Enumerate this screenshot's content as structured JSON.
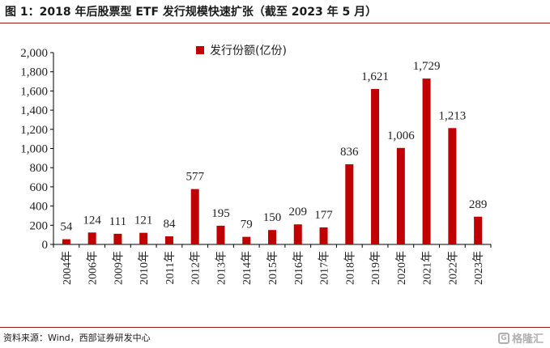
{
  "title": "图 1：2018 年后股票型 ETF 发行规模快速扩张（截至 2023 年 5 月）",
  "source": "资料来源：Wind，西部证券研发中心",
  "watermark": "格隆汇",
  "colors": {
    "bar": "#c00000",
    "axis": "#000000",
    "rule": "#9a1a1a"
  },
  "chart_data": {
    "type": "bar",
    "title": "",
    "xlabel": "",
    "ylabel": "",
    "categories": [
      "2004年",
      "2006年",
      "2009年",
      "2010年",
      "2011年",
      "2012年",
      "2013年",
      "2014年",
      "2015年",
      "2016年",
      "2017年",
      "2018年",
      "2019年",
      "2020年",
      "2021年",
      "2022年",
      "2023年"
    ],
    "series": [
      {
        "name": "发行份额(亿份)",
        "values": [
          54,
          124,
          111,
          121,
          84,
          577,
          195,
          79,
          150,
          209,
          177,
          836,
          1621,
          1006,
          1729,
          1213,
          289
        ],
        "value_labels": [
          "54",
          "124",
          "111",
          "121",
          "84",
          "577",
          "195",
          "79",
          "150",
          "209",
          "177",
          "836",
          "1,621",
          "1,006",
          "1,729",
          "1,213",
          "289"
        ]
      }
    ],
    "ylim": [
      0,
      2000
    ],
    "yticks": [
      0,
      200,
      400,
      600,
      800,
      1000,
      1200,
      1400,
      1600,
      1800,
      2000
    ],
    "ytick_labels": [
      "0",
      "200",
      "400",
      "600",
      "800",
      "1,000",
      "1,200",
      "1,400",
      "1,600",
      "1,800",
      "2,000"
    ],
    "grid": false,
    "legend_position": "top-center"
  }
}
